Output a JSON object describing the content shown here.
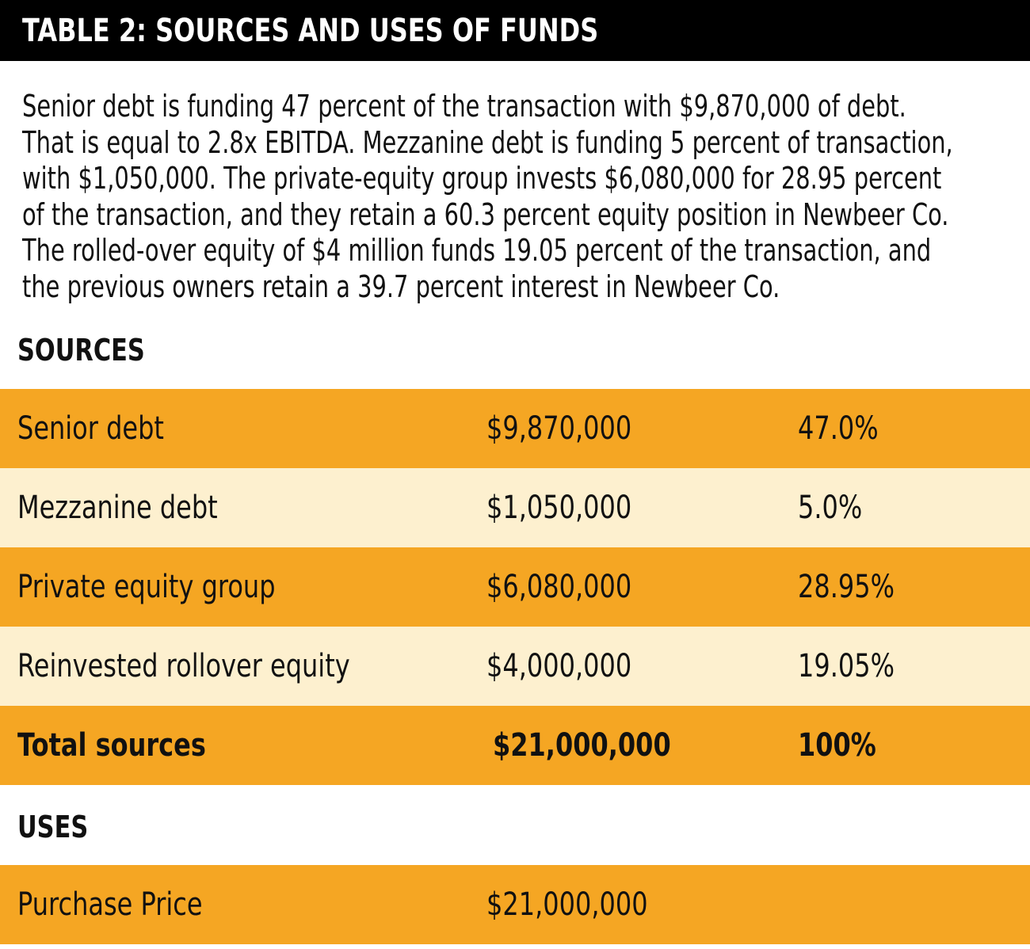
{
  "header": {
    "title": "TABLE 2: SOURCES AND USES OF FUNDS"
  },
  "description": {
    "lines": [
      "Senior debt is funding 47 percent of the transaction with $9,870,000 of debt.",
      "That is equal to 2.8x EBITDA. Mezzanine debt is funding 5 percent of transaction,",
      "with $1,050,000. The private-equity group invests $6,080,000 for 28.95 percent",
      "of the transaction, and they retain a 60.3 percent equity position in Newbeer Co.",
      "The rolled-over equity of $4 million funds 19.05 percent of the transaction, and",
      "the previous owners retain a 39.7 percent interest in Newbeer Co."
    ]
  },
  "sources": {
    "heading": "SOURCES",
    "rows": [
      [
        "Senior debt",
        "$9,870,000",
        "47.0%"
      ],
      [
        "Mezzanine debt",
        "$1,050,000",
        "5.0%"
      ],
      [
        "Private equity group",
        "$6,080,000",
        "28.95%"
      ],
      [
        "Reinvested rollover equity",
        "$4,000,000",
        "19.05%"
      ]
    ],
    "total": [
      "Total sources",
      "$21,000,000",
      "100%"
    ]
  },
  "uses": {
    "heading": "USES",
    "rows": [
      [
        "Purchase Price",
        "$21,000,000"
      ]
    ]
  }
}
